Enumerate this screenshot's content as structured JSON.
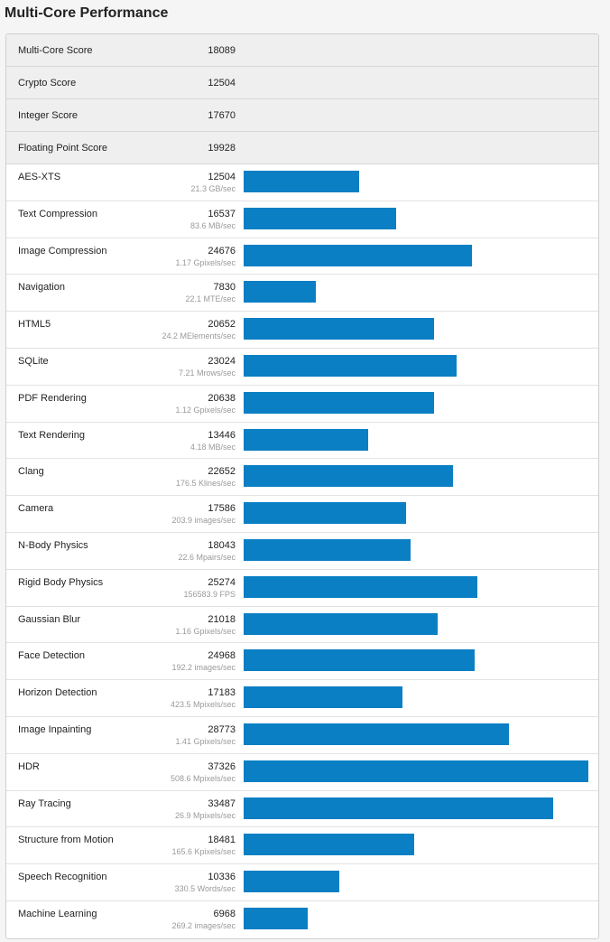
{
  "page": {
    "title": "Multi-Core Performance"
  },
  "summary": [
    {
      "name": "Multi-Core Score",
      "score": "18089"
    },
    {
      "name": "Crypto Score",
      "score": "12504"
    },
    {
      "name": "Integer Score",
      "score": "17670"
    },
    {
      "name": "Floating Point Score",
      "score": "19928"
    }
  ],
  "benchmarks": [
    {
      "name": "AES-XTS",
      "score": "12504",
      "rate": "21.3 GB/sec"
    },
    {
      "name": "Text Compression",
      "score": "16537",
      "rate": "83.6 MB/sec"
    },
    {
      "name": "Image Compression",
      "score": "24676",
      "rate": "1.17 Gpixels/sec"
    },
    {
      "name": "Navigation",
      "score": "7830",
      "rate": "22.1 MTE/sec"
    },
    {
      "name": "HTML5",
      "score": "20652",
      "rate": "24.2 MElements/sec"
    },
    {
      "name": "SQLite",
      "score": "23024",
      "rate": "7.21 Mrows/sec"
    },
    {
      "name": "PDF Rendering",
      "score": "20638",
      "rate": "1.12 Gpixels/sec"
    },
    {
      "name": "Text Rendering",
      "score": "13446",
      "rate": "4.18 MB/sec"
    },
    {
      "name": "Clang",
      "score": "22652",
      "rate": "176.5 Klines/sec"
    },
    {
      "name": "Camera",
      "score": "17586",
      "rate": "203.9 images/sec"
    },
    {
      "name": "N-Body Physics",
      "score": "18043",
      "rate": "22.6 Mpairs/sec"
    },
    {
      "name": "Rigid Body Physics",
      "score": "25274",
      "rate": "156583.9 FPS"
    },
    {
      "name": "Gaussian Blur",
      "score": "21018",
      "rate": "1.16 Gpixels/sec"
    },
    {
      "name": "Face Detection",
      "score": "24968",
      "rate": "192.2 images/sec"
    },
    {
      "name": "Horizon Detection",
      "score": "17183",
      "rate": "423.5 Mpixels/sec"
    },
    {
      "name": "Image Inpainting",
      "score": "28773",
      "rate": "1.41 Gpixels/sec"
    },
    {
      "name": "HDR",
      "score": "37326",
      "rate": "508.6 Mpixels/sec"
    },
    {
      "name": "Ray Tracing",
      "score": "33487",
      "rate": "26.9 Mpixels/sec"
    },
    {
      "name": "Structure from Motion",
      "score": "18481",
      "rate": "165.6 Kpixels/sec"
    },
    {
      "name": "Speech Recognition",
      "score": "10336",
      "rate": "330.5 Words/sec"
    },
    {
      "name": "Machine Learning",
      "score": "6968",
      "rate": "269.2 images/sec"
    }
  ],
  "colors": {
    "bar": "#0a7fc4",
    "summary_bg": "#efefef"
  }
}
